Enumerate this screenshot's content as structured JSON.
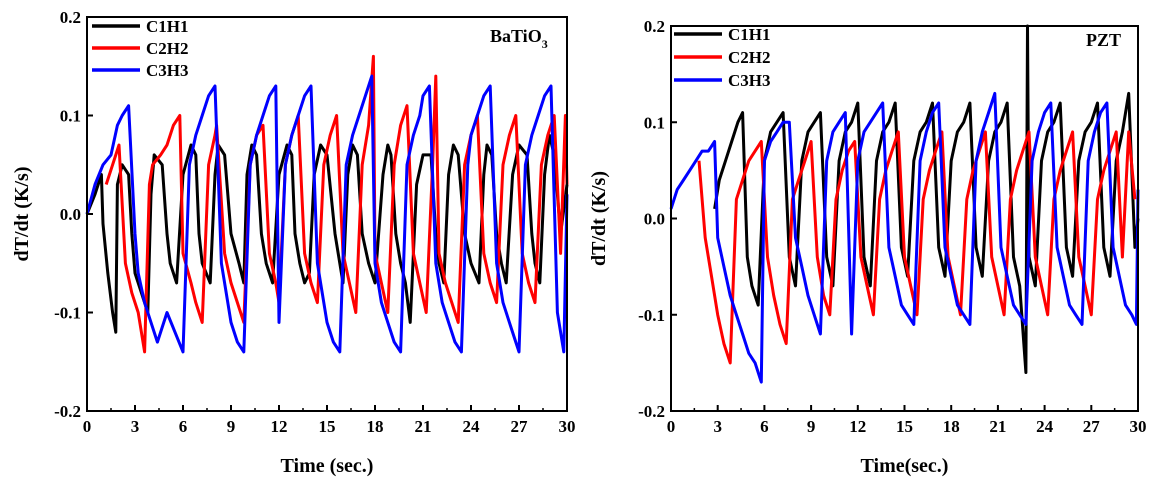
{
  "chart_data": [
    {
      "type": "line",
      "panel_label": "BaTiO",
      "panel_label_sub": "3",
      "xlabel": "Time (sec.)",
      "ylabel": "dT/dt (K/s)",
      "xlim": [
        0,
        30
      ],
      "ylim": [
        -0.2,
        0.2
      ],
      "xticks": [
        "0",
        "3",
        "6",
        "9",
        "12",
        "15",
        "18",
        "21",
        "24",
        "27",
        "30"
      ],
      "yticks": [
        "-0.2",
        "-0.1",
        "0.0",
        "0.1",
        "0.2"
      ],
      "legend_position": "top-left",
      "grid": false,
      "series": [
        {
          "name": "C1H1",
          "color": "#000000",
          "x": [
            0,
            0.5,
            0.9,
            1.0,
            1.3,
            1.6,
            1.8,
            1.9,
            2.2,
            2.6,
            2.8,
            3.0,
            3.4,
            3.8,
            4.0,
            4.2,
            4.7,
            5.0,
            5.2,
            5.6,
            6.0,
            6.5,
            6.8,
            7.0,
            7.2,
            7.7,
            8.0,
            8.2,
            8.6,
            9.0,
            9.5,
            9.8,
            10.0,
            10.3,
            10.6,
            10.9,
            11.2,
            11.6,
            12.0,
            12.5,
            12.8,
            13.0,
            13.3,
            13.6,
            13.9,
            14.2,
            14.6,
            15.0,
            15.5,
            15.8,
            16.0,
            16.3,
            16.6,
            16.9,
            17.2,
            17.6,
            18.0,
            18.5,
            18.8,
            19.0,
            19.3,
            19.6,
            19.9,
            20.2,
            20.6,
            21.0,
            21.5,
            21.8,
            22.0,
            22.3,
            22.6,
            22.9,
            23.2,
            23.6,
            24.0,
            24.5,
            24.8,
            25.0,
            25.3,
            25.6,
            25.9,
            26.2,
            26.6,
            27.0,
            27.5,
            27.8,
            28.0,
            28.3,
            28.6,
            28.9,
            29.2,
            29.6,
            30.0
          ],
          "y": [
            0.0,
            0.02,
            0.04,
            -0.01,
            -0.06,
            -0.1,
            -0.12,
            0.03,
            0.05,
            0.04,
            -0.02,
            -0.06,
            -0.08,
            -0.1,
            0.02,
            0.06,
            0.05,
            -0.02,
            -0.05,
            -0.07,
            0.04,
            0.07,
            0.06,
            -0.02,
            -0.05,
            -0.07,
            0.04,
            0.07,
            0.06,
            -0.02,
            -0.05,
            -0.07,
            0.04,
            0.07,
            0.06,
            -0.02,
            -0.05,
            -0.07,
            0.04,
            0.07,
            0.06,
            -0.02,
            -0.05,
            -0.07,
            -0.06,
            0.04,
            0.07,
            0.06,
            -0.02,
            -0.05,
            -0.07,
            0.04,
            0.07,
            0.06,
            -0.02,
            -0.05,
            -0.07,
            0.04,
            0.07,
            0.06,
            -0.02,
            -0.05,
            -0.07,
            -0.11,
            0.03,
            0.06,
            0.06,
            -0.02,
            -0.05,
            -0.07,
            0.04,
            0.07,
            0.06,
            -0.02,
            -0.05,
            -0.07,
            0.04,
            0.07,
            0.06,
            -0.02,
            -0.05,
            -0.07,
            0.04,
            0.07,
            0.06,
            -0.02,
            -0.05,
            -0.07,
            0.04,
            0.08,
            0.06,
            -0.02,
            0.03
          ]
        },
        {
          "name": "C2H2",
          "color": "#ff0000",
          "x": [
            1.2,
            1.6,
            2.0,
            2.4,
            2.8,
            3.2,
            3.6,
            3.9,
            4.1,
            4.6,
            5.0,
            5.4,
            5.8,
            6.0,
            6.5,
            6.8,
            7.2,
            7.6,
            8.0,
            8.1,
            8.6,
            9.0,
            9.4,
            9.8,
            10.2,
            10.6,
            11.0,
            11.4,
            11.8,
            12.0,
            12.4,
            12.8,
            13.2,
            13.6,
            14.0,
            14.4,
            14.8,
            15.2,
            15.6,
            16.0,
            16.4,
            16.8,
            17.2,
            17.6,
            17.9,
            18.0,
            18.4,
            18.8,
            19.2,
            19.6,
            20.0,
            20.4,
            20.8,
            21.2,
            21.6,
            21.8,
            22.0,
            22.4,
            22.8,
            23.2,
            23.6,
            24.0,
            24.4,
            24.8,
            25.2,
            25.6,
            26.0,
            26.4,
            26.8,
            27.2,
            27.6,
            28.0,
            28.4,
            28.8,
            29.2,
            29.6,
            29.9,
            30.0
          ],
          "y": [
            0.03,
            0.05,
            0.07,
            -0.05,
            -0.08,
            -0.1,
            -0.14,
            0.03,
            0.05,
            0.06,
            0.07,
            0.09,
            0.1,
            -0.04,
            -0.07,
            -0.09,
            -0.11,
            0.05,
            0.08,
            0.09,
            -0.04,
            -0.07,
            -0.09,
            -0.11,
            0.05,
            0.08,
            0.09,
            -0.04,
            -0.07,
            -0.09,
            0.05,
            0.08,
            0.1,
            -0.04,
            -0.07,
            -0.09,
            0.05,
            0.08,
            0.1,
            -0.04,
            -0.07,
            -0.1,
            0.05,
            0.09,
            0.16,
            -0.04,
            -0.07,
            -0.1,
            0.05,
            0.09,
            0.11,
            -0.04,
            -0.07,
            -0.1,
            0.05,
            0.14,
            -0.04,
            -0.07,
            -0.09,
            -0.11,
            0.05,
            0.08,
            0.1,
            -0.04,
            -0.07,
            -0.09,
            0.05,
            0.08,
            0.1,
            -0.04,
            -0.07,
            -0.09,
            0.05,
            0.08,
            0.1,
            -0.04,
            0.1,
            0.03
          ]
        },
        {
          "name": "C3H3",
          "color": "#0000ff",
          "x": [
            0,
            0.5,
            1.0,
            1.5,
            1.9,
            2.2,
            2.6,
            3.0,
            3.2,
            3.6,
            4.0,
            4.4,
            5.0,
            5.5,
            6.0,
            6.4,
            6.8,
            7.2,
            7.6,
            8.0,
            8.4,
            8.8,
            9.0,
            9.4,
            9.8,
            10.2,
            10.6,
            11.0,
            11.4,
            11.8,
            12.0,
            12.4,
            12.8,
            13.2,
            13.6,
            14.0,
            14.4,
            14.8,
            15.0,
            15.4,
            15.8,
            16.2,
            16.6,
            17.0,
            17.4,
            17.8,
            18.0,
            18.4,
            18.8,
            19.2,
            19.6,
            20.0,
            20.4,
            20.8,
            21.0,
            21.4,
            21.8,
            22.2,
            22.6,
            23.0,
            23.4,
            23.8,
            24.0,
            24.4,
            24.8,
            25.2,
            25.6,
            26.0,
            26.4,
            26.8,
            27.0,
            27.4,
            27.8,
            28.2,
            28.6,
            29.0,
            29.4,
            29.8,
            30.0
          ],
          "y": [
            0.0,
            0.03,
            0.05,
            0.06,
            0.09,
            0.1,
            0.11,
            -0.02,
            -0.06,
            -0.09,
            -0.11,
            -0.13,
            -0.1,
            -0.12,
            -0.14,
            0.05,
            0.08,
            0.1,
            0.12,
            0.13,
            -0.05,
            -0.09,
            -0.11,
            -0.13,
            -0.14,
            0.05,
            0.08,
            0.1,
            0.12,
            0.13,
            -0.11,
            0.05,
            0.08,
            0.1,
            0.12,
            0.13,
            -0.05,
            -0.09,
            -0.11,
            -0.13,
            -0.14,
            0.05,
            0.08,
            0.1,
            0.12,
            0.14,
            -0.05,
            -0.09,
            -0.11,
            -0.13,
            -0.14,
            0.05,
            0.08,
            0.1,
            0.12,
            0.13,
            -0.05,
            -0.09,
            -0.11,
            -0.13,
            -0.14,
            0.05,
            0.08,
            0.1,
            0.12,
            0.13,
            -0.05,
            -0.09,
            -0.11,
            -0.13,
            -0.14,
            0.05,
            0.08,
            0.1,
            0.12,
            0.13,
            -0.1,
            -0.14,
            0.02
          ]
        }
      ]
    },
    {
      "type": "line",
      "panel_label": "PZT",
      "panel_label_sub": "",
      "xlabel": "Time(sec.)",
      "ylabel": "dT/dt (K/s)",
      "xlim": [
        0,
        30
      ],
      "ylim": [
        -0.2,
        0.2
      ],
      "xticks": [
        "0",
        "3",
        "6",
        "9",
        "12",
        "15",
        "18",
        "21",
        "24",
        "27",
        "30"
      ],
      "yticks": [
        "-0.2",
        "-0.1",
        "0.0",
        "0.1",
        "0.2"
      ],
      "legend_position": "top-left",
      "grid": false,
      "series": [
        {
          "name": "C1H1",
          "color": "#000000",
          "x": [
            2.8,
            3.1,
            3.5,
            3.9,
            4.3,
            4.6,
            4.9,
            5.2,
            5.6,
            6.0,
            6.4,
            6.8,
            7.2,
            7.6,
            8.0,
            8.4,
            8.8,
            9.2,
            9.6,
            10.0,
            10.4,
            10.8,
            11.2,
            11.6,
            12.0,
            12.4,
            12.8,
            13.2,
            13.6,
            14.0,
            14.4,
            14.8,
            15.2,
            15.6,
            16.0,
            16.4,
            16.8,
            17.2,
            17.6,
            18.0,
            18.4,
            18.8,
            19.2,
            19.6,
            20.0,
            20.4,
            20.8,
            21.2,
            21.6,
            22.0,
            22.4,
            22.8,
            22.9,
            23.0,
            23.4,
            23.8,
            24.2,
            24.6,
            25.0,
            25.4,
            25.8,
            26.2,
            26.6,
            27.0,
            27.4,
            27.8,
            28.2,
            28.6,
            29.0,
            29.4,
            29.8,
            30.0
          ],
          "y": [
            0.01,
            0.04,
            0.06,
            0.08,
            0.1,
            0.11,
            -0.04,
            -0.07,
            -0.09,
            0.06,
            0.09,
            0.1,
            0.11,
            -0.04,
            -0.07,
            0.06,
            0.09,
            0.1,
            0.11,
            -0.04,
            -0.07,
            0.06,
            0.09,
            0.1,
            0.12,
            -0.04,
            -0.07,
            0.06,
            0.09,
            0.1,
            0.12,
            -0.03,
            -0.06,
            0.06,
            0.09,
            0.1,
            0.12,
            -0.03,
            -0.06,
            0.06,
            0.09,
            0.1,
            0.12,
            -0.03,
            -0.06,
            0.06,
            0.09,
            0.1,
            0.12,
            -0.04,
            -0.07,
            -0.16,
            0.2,
            -0.04,
            -0.07,
            0.06,
            0.09,
            0.1,
            0.12,
            -0.03,
            -0.06,
            0.06,
            0.09,
            0.1,
            0.12,
            -0.03,
            -0.06,
            0.06,
            0.09,
            0.13,
            -0.03,
            0.0
          ]
        },
        {
          "name": "C2H2",
          "color": "#ff0000",
          "x": [
            1.8,
            2.2,
            2.6,
            3.0,
            3.4,
            3.8,
            4.2,
            4.6,
            5.0,
            5.4,
            5.8,
            6.2,
            6.6,
            7.0,
            7.4,
            7.8,
            8.2,
            8.6,
            9.0,
            9.4,
            9.8,
            10.2,
            10.6,
            11.0,
            11.4,
            11.8,
            12.2,
            12.6,
            13.0,
            13.4,
            13.8,
            14.2,
            14.6,
            15.0,
            15.4,
            15.8,
            16.2,
            16.6,
            17.0,
            17.4,
            17.8,
            18.2,
            18.6,
            19.0,
            19.4,
            19.8,
            20.2,
            20.6,
            21.0,
            21.4,
            21.8,
            22.2,
            22.6,
            23.0,
            23.4,
            23.8,
            24.2,
            24.6,
            25.0,
            25.4,
            25.8,
            26.2,
            26.6,
            27.0,
            27.4,
            27.8,
            28.2,
            28.6,
            29.0,
            29.4,
            29.8
          ],
          "y": [
            0.06,
            -0.02,
            -0.06,
            -0.1,
            -0.13,
            -0.15,
            0.02,
            0.04,
            0.06,
            0.07,
            0.08,
            -0.04,
            -0.08,
            -0.11,
            -0.13,
            0.02,
            0.04,
            0.06,
            0.08,
            -0.04,
            -0.08,
            -0.1,
            0.02,
            0.05,
            0.07,
            0.08,
            -0.04,
            -0.07,
            -0.1,
            0.02,
            0.05,
            0.07,
            0.09,
            -0.04,
            -0.07,
            -0.1,
            0.02,
            0.05,
            0.07,
            0.09,
            -0.04,
            -0.07,
            -0.1,
            0.02,
            0.05,
            0.07,
            0.09,
            -0.04,
            -0.07,
            -0.1,
            0.02,
            0.05,
            0.07,
            0.09,
            -0.04,
            -0.07,
            -0.1,
            0.02,
            0.05,
            0.07,
            0.09,
            -0.04,
            -0.07,
            -0.1,
            0.02,
            0.05,
            0.07,
            0.09,
            -0.04,
            0.09,
            0.02
          ]
        },
        {
          "name": "C3H3",
          "color": "#0000ff",
          "x": [
            0,
            0.4,
            0.8,
            1.2,
            1.6,
            2.0,
            2.4,
            2.8,
            3.0,
            3.4,
            3.8,
            4.2,
            4.6,
            5.0,
            5.4,
            5.8,
            6.0,
            6.4,
            6.8,
            7.2,
            7.6,
            8.0,
            8.4,
            8.8,
            9.2,
            9.6,
            10.0,
            10.4,
            10.8,
            11.2,
            11.6,
            12.0,
            12.4,
            12.8,
            13.2,
            13.6,
            14.0,
            14.4,
            14.8,
            15.2,
            15.6,
            16.0,
            16.4,
            16.8,
            17.2,
            17.6,
            18.0,
            18.4,
            18.8,
            19.2,
            19.6,
            20.0,
            20.4,
            20.8,
            21.2,
            21.6,
            22.0,
            22.4,
            22.8,
            23.2,
            23.6,
            24.0,
            24.4,
            24.8,
            25.2,
            25.6,
            26.0,
            26.4,
            26.8,
            27.2,
            27.6,
            28.0,
            28.4,
            28.8,
            29.2,
            29.6,
            29.9,
            30.0
          ],
          "y": [
            0.01,
            0.03,
            0.04,
            0.05,
            0.06,
            0.07,
            0.07,
            0.08,
            -0.02,
            -0.05,
            -0.08,
            -0.1,
            -0.12,
            -0.14,
            -0.15,
            -0.17,
            0.06,
            0.08,
            0.09,
            0.1,
            0.1,
            -0.02,
            -0.05,
            -0.08,
            -0.1,
            -0.12,
            0.06,
            0.09,
            0.1,
            0.11,
            -0.12,
            0.06,
            0.09,
            0.1,
            0.11,
            0.12,
            -0.03,
            -0.06,
            -0.09,
            -0.1,
            -0.11,
            0.06,
            0.09,
            0.11,
            0.12,
            -0.03,
            -0.06,
            -0.09,
            -0.1,
            -0.11,
            0.06,
            0.09,
            0.11,
            0.13,
            -0.03,
            -0.06,
            -0.09,
            -0.1,
            -0.11,
            0.06,
            0.09,
            0.11,
            0.12,
            -0.03,
            -0.06,
            -0.09,
            -0.1,
            -0.11,
            0.06,
            0.09,
            0.11,
            0.12,
            -0.03,
            -0.06,
            -0.09,
            -0.1,
            -0.11,
            0.03
          ]
        }
      ]
    }
  ]
}
